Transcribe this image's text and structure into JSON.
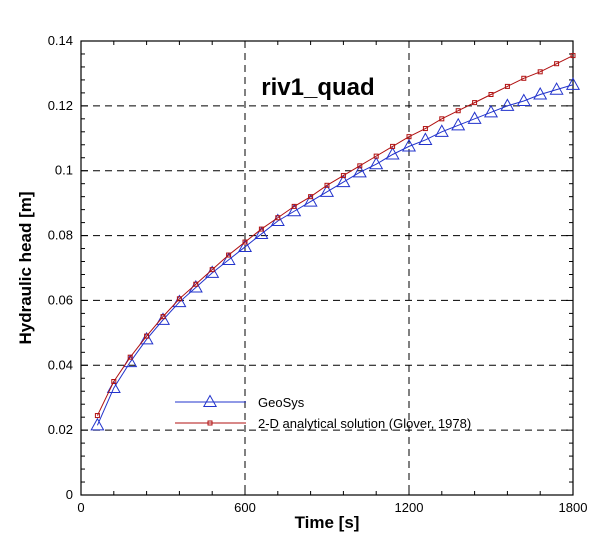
{
  "chart_data": {
    "type": "line",
    "title": "riv1_quad",
    "xlabel": "Time [s]",
    "ylabel": "Hydraulic head [m]",
    "xlim": [
      0,
      1800
    ],
    "ylim": [
      0,
      0.14
    ],
    "xticks": [
      0,
      600,
      1200,
      1800
    ],
    "yticks": [
      0,
      0.02,
      0.04,
      0.06,
      0.08,
      0.1,
      0.12,
      0.14
    ],
    "grid": true,
    "legend_position": "bottom-center",
    "series": [
      {
        "name": "GeoSys",
        "color": "#2233cc",
        "marker": "triangle-open",
        "x": [
          60,
          120,
          180,
          240,
          300,
          360,
          420,
          480,
          540,
          600,
          660,
          720,
          780,
          840,
          900,
          960,
          1020,
          1080,
          1140,
          1200,
          1260,
          1320,
          1380,
          1440,
          1500,
          1560,
          1620,
          1680,
          1740,
          1800
        ],
        "y": [
          0.0215,
          0.033,
          0.041,
          0.048,
          0.054,
          0.0595,
          0.064,
          0.0685,
          0.0725,
          0.0765,
          0.0805,
          0.0845,
          0.0875,
          0.0905,
          0.0935,
          0.0965,
          0.0995,
          0.102,
          0.105,
          0.1075,
          0.1095,
          0.112,
          0.114,
          0.116,
          0.118,
          0.12,
          0.1215,
          0.1235,
          0.125,
          0.1265
        ]
      },
      {
        "name": "2-D analytical solution (Glover, 1978)",
        "color": "#b01010",
        "marker": "square-open",
        "x": [
          60,
          120,
          180,
          240,
          300,
          360,
          420,
          480,
          540,
          600,
          660,
          720,
          780,
          840,
          900,
          960,
          1020,
          1080,
          1140,
          1200,
          1260,
          1320,
          1380,
          1440,
          1500,
          1560,
          1620,
          1680,
          1740,
          1800
        ],
        "y": [
          0.0245,
          0.035,
          0.0425,
          0.049,
          0.055,
          0.0605,
          0.065,
          0.0695,
          0.074,
          0.078,
          0.082,
          0.0855,
          0.089,
          0.092,
          0.0955,
          0.0985,
          0.1015,
          0.1045,
          0.1075,
          0.1105,
          0.113,
          0.116,
          0.1185,
          0.121,
          0.1235,
          0.126,
          0.1285,
          0.1305,
          0.133,
          0.1355
        ]
      }
    ]
  }
}
